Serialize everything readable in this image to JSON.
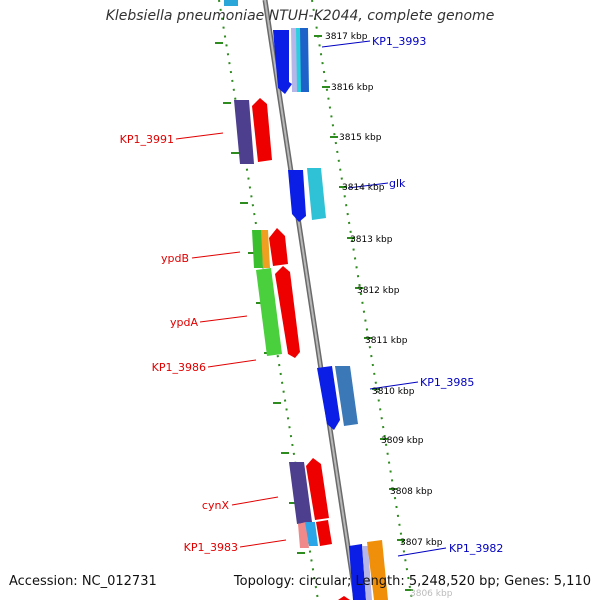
{
  "title": "Klebsiella pneumoniae NTUH-K2044, complete genome",
  "footer": {
    "accession": "Accession: NC_012731",
    "topology": "Topology: circular; Length: 5,248,520 bp; Genes: 5,110"
  },
  "colors": {
    "background": "#ffffff",
    "backbone": "#8a8a8a",
    "ticks": "#2e8b1e",
    "label_left": "#e00000",
    "label_right": "#0000c0",
    "scale_text": "#000000"
  },
  "scale_labels": [
    "3817 kbp",
    "3816 kbp",
    "3815 kbp",
    "3814 kbp",
    "3813 kbp",
    "3812 kbp",
    "3811 kbp",
    "3810 kbp",
    "3809 kbp",
    "3808 kbp",
    "3807 kbp",
    "3806 kbp"
  ],
  "gene_labels_left": [
    "KP1_3991",
    "ypdB",
    "ypdA",
    "KP1_3986",
    "cynX",
    "KP1_3983"
  ],
  "gene_labels_right": [
    "KP1_3993",
    "glk",
    "KP1_3985",
    "KP1_3982"
  ]
}
